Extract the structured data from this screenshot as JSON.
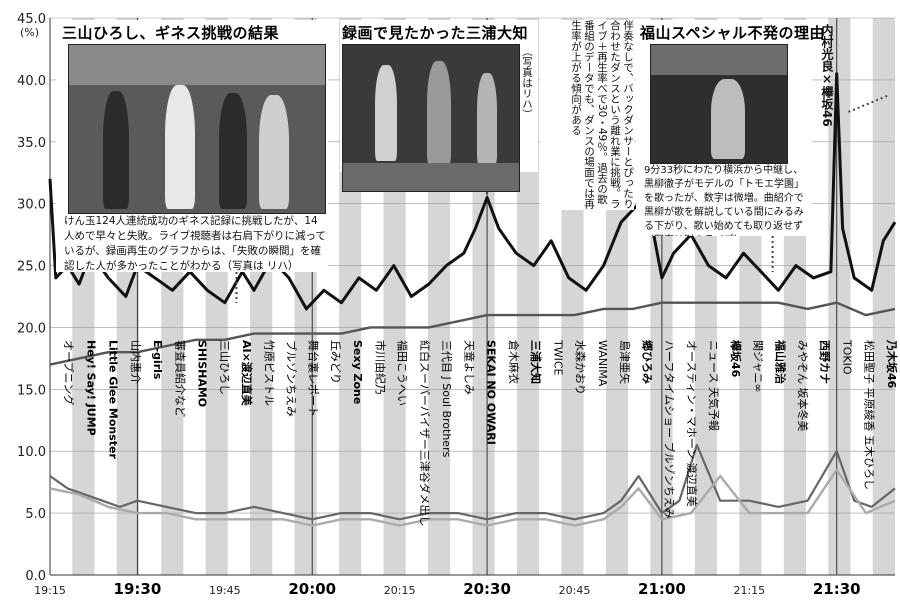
{
  "chart_data": {
    "type": "line",
    "title": "",
    "ylabel": "(%)",
    "xlabel": "",
    "ylim": [
      0,
      45
    ],
    "y_ticks": [
      "0.0",
      "5.0",
      "10.0",
      "15.0",
      "20.0",
      "25.0",
      "30.0",
      "35.0",
      "40.0",
      "45.0"
    ],
    "x_range": [
      "19:15",
      "21:40"
    ],
    "x_tick_labels": [
      {
        "t": "19:15",
        "label": "19:15",
        "major": false
      },
      {
        "t": "19:30",
        "label": "19:30",
        "major": true
      },
      {
        "t": "19:45",
        "label": "19:45",
        "major": false
      },
      {
        "t": "20:00",
        "label": "20:00",
        "major": true
      },
      {
        "t": "20:15",
        "label": "20:15",
        "major": false
      },
      {
        "t": "20:30",
        "label": "20:30",
        "major": true
      },
      {
        "t": "20:45",
        "label": "20:45",
        "major": false
      },
      {
        "t": "21:00",
        "label": "21:00",
        "major": true
      },
      {
        "t": "21:15",
        "label": "21:15",
        "major": false
      },
      {
        "t": "21:30",
        "label": "21:30",
        "major": true
      }
    ],
    "grid": "alternating vertical bands per segment",
    "series": [
      {
        "style": "bold-black",
        "x": [
          "19:15",
          "19:16",
          "19:18",
          "19:20",
          "19:22",
          "19:25",
          "19:28",
          "19:30",
          "19:33",
          "19:36",
          "19:39",
          "19:42",
          "19:45",
          "19:48",
          "19:50",
          "19:53",
          "19:56",
          "19:59",
          "20:02",
          "20:05",
          "20:08",
          "20:11",
          "20:14",
          "20:17",
          "20:20",
          "20:23",
          "20:26",
          "20:28",
          "20:30",
          "20:32",
          "20:35",
          "20:38",
          "20:41",
          "20:44",
          "20:47",
          "20:50",
          "20:53",
          "20:56",
          "20:58",
          "21:00",
          "21:02",
          "21:05",
          "21:08",
          "21:11",
          "21:14",
          "21:17",
          "21:20",
          "21:23",
          "21:26",
          "21:29",
          "21:30",
          "21:31",
          "21:33",
          "21:36",
          "21:38",
          "21:40"
        ],
        "values": [
          32,
          24,
          25,
          23.5,
          26,
          24,
          22.5,
          25,
          24,
          23,
          24.5,
          23,
          22,
          24.5,
          23,
          25.5,
          24,
          21.5,
          23,
          22,
          24,
          23,
          25,
          22.5,
          23.5,
          25,
          26,
          28,
          30.5,
          28,
          26,
          25,
          27,
          24,
          23,
          25,
          28.5,
          30,
          29,
          24,
          26,
          27.5,
          25,
          24,
          26,
          24.5,
          23,
          25,
          24,
          24.5,
          40.5,
          28,
          24,
          23,
          27,
          28.5
        ]
      },
      {
        "style": "medium-gray",
        "x": [
          "19:15",
          "19:20",
          "19:25",
          "19:30",
          "19:35",
          "19:40",
          "19:45",
          "19:50",
          "19:55",
          "20:00",
          "20:05",
          "20:10",
          "20:15",
          "20:20",
          "20:25",
          "20:30",
          "20:35",
          "20:40",
          "20:45",
          "20:50",
          "20:55",
          "21:00",
          "21:05",
          "21:10",
          "21:15",
          "21:20",
          "21:25",
          "21:30",
          "21:35",
          "21:40"
        ],
        "values": [
          17,
          17.5,
          18,
          18,
          18.5,
          19,
          19,
          19.5,
          19.5,
          19.5,
          19.5,
          20,
          20,
          20,
          20.5,
          21,
          21,
          21,
          21,
          21.5,
          21.5,
          22,
          22,
          22,
          22,
          22,
          21.5,
          22,
          21,
          21.5
        ]
      },
      {
        "style": "dark-lower",
        "x": [
          "19:15",
          "19:18",
          "19:21",
          "19:24",
          "19:27",
          "19:30",
          "19:35",
          "19:40",
          "19:45",
          "19:50",
          "19:55",
          "20:00",
          "20:05",
          "20:10",
          "20:15",
          "20:20",
          "20:25",
          "20:30",
          "20:35",
          "20:40",
          "20:45",
          "20:50",
          "20:53",
          "20:56",
          "21:00",
          "21:03",
          "21:06",
          "21:10",
          "21:15",
          "21:20",
          "21:25",
          "21:30",
          "21:33",
          "21:36",
          "21:40"
        ],
        "values": [
          8,
          7,
          6.5,
          6,
          5.5,
          6,
          5.5,
          5,
          5,
          5.5,
          5,
          4.5,
          5,
          5,
          4.5,
          5,
          5,
          4.5,
          5,
          5,
          4.5,
          5,
          6,
          8,
          5,
          6,
          10.5,
          6,
          6,
          5.5,
          6,
          10,
          6,
          5.5,
          7
        ]
      },
      {
        "style": "light-lower",
        "x": [
          "19:15",
          "19:20",
          "19:25",
          "19:30",
          "19:35",
          "19:40",
          "19:45",
          "19:50",
          "19:55",
          "20:00",
          "20:05",
          "20:10",
          "20:15",
          "20:20",
          "20:25",
          "20:30",
          "20:35",
          "20:40",
          "20:45",
          "20:50",
          "20:53",
          "20:56",
          "21:00",
          "21:05",
          "21:10",
          "21:15",
          "21:20",
          "21:25",
          "21:30",
          "21:35",
          "21:40"
        ],
        "values": [
          7,
          6.5,
          5.5,
          5,
          5,
          4.5,
          4.5,
          4.5,
          4.5,
          4,
          4.5,
          4.5,
          4,
          4.5,
          4.5,
          4,
          4.5,
          4.5,
          4,
          4.5,
          5.5,
          7,
          4.5,
          5,
          8,
          5,
          5,
          5,
          8.5,
          5,
          6
        ]
      }
    ]
  },
  "segments": [
    {
      "label": "オープニング",
      "boxed": false
    },
    {
      "label": "Hey! Say! JUMP",
      "boxed": true
    },
    {
      "label": "Little Glee Monster",
      "boxed": true
    },
    {
      "label": "山内惠介",
      "boxed": false
    },
    {
      "label": "E-girls",
      "boxed": true
    },
    {
      "label": "審査員紹介など",
      "boxed": false
    },
    {
      "label": "SHISHAMO",
      "boxed": true
    },
    {
      "label": "三山ひろし",
      "boxed": false
    },
    {
      "label": "AI×渡辺直美",
      "boxed": true
    },
    {
      "label": "竹原ピストル",
      "boxed": false
    },
    {
      "label": "ブルゾンちえみ",
      "boxed": false
    },
    {
      "label": "舞台裏レポート",
      "boxed": false
    },
    {
      "label": "丘みどり",
      "boxed": false
    },
    {
      "label": "Sexy Zone",
      "boxed": true
    },
    {
      "label": "市川由紀乃",
      "boxed": false
    },
    {
      "label": "福田こうへい",
      "boxed": false
    },
    {
      "label": "紅白スーパーバイザー三津谷ダメ出し",
      "boxed": false
    },
    {
      "label": "三代目 J Soul Brothers",
      "boxed": false
    },
    {
      "label": "天童よしみ",
      "boxed": false
    },
    {
      "label": "SEKAI NO OWARI",
      "boxed": true
    },
    {
      "label": "倉木麻衣",
      "boxed": false
    },
    {
      "label": "三浦大知",
      "boxed": true
    },
    {
      "label": "TWICE",
      "boxed": false
    },
    {
      "label": "水森かおり",
      "boxed": false
    },
    {
      "label": "WANIMA",
      "boxed": false
    },
    {
      "label": "島津亜矢",
      "boxed": false
    },
    {
      "label": "郷ひろみ",
      "boxed": true
    },
    {
      "label": "ハーフタイムショー ブルゾンちえみ",
      "boxed": false
    },
    {
      "label": "オースティン・マホーン 渡辺直美",
      "boxed": false
    },
    {
      "label": "ニュース 天気予報",
      "boxed": false
    },
    {
      "label": "欅坂46",
      "boxed": true
    },
    {
      "label": "関ジャニ∞",
      "boxed": false
    },
    {
      "label": "福山雅治",
      "boxed": true
    },
    {
      "label": "みやぞん 坂本冬美",
      "boxed": false
    },
    {
      "label": "西野カナ",
      "boxed": true
    },
    {
      "label": "TOKIO",
      "boxed": false
    },
    {
      "label": "松田聖子 平原綾香 五木ひろし",
      "boxed": false
    },
    {
      "label": "乃木坂46",
      "boxed": true
    }
  ],
  "callouts": {
    "mitsuyama": {
      "title": "三山ひろし、ギネス挑戦の結果",
      "caption": "けん玉124人連続成功のギネス記録に挑戦したが、14人めで早々と失敗。ライブ視聴者は右肩下がりに減っているが、録画再生のグラフからは、「失敗の瞬間」を確認した人が多かったことがわかる（写真は リハ）"
    },
    "miura": {
      "title": "録画で見たかった三浦大知",
      "photo_note": "（写真はリハ）",
      "caption": "伴奏なしで、バックダンサーとぴったり合わせたダンスという離れ業に挑戦。ライブ＋再生率べで30・49％。過去の歌番組のデータでも、ダンスの場面では再生率が上がる傾向がある"
    },
    "fukuyama": {
      "title": "福山スペシャル不発の理由",
      "caption": "9分33秒にわたり横浜から中継し、黒柳徹子がモデルの「トモエ学園」を歌ったが、数字は微増。曲紹介で黒柳が歌を解説している間にみるみる下がり、歌い始めても取り返せず（写真は別のライブ）"
    },
    "uchimura": {
      "label": "内村光良×欅坂46"
    }
  }
}
